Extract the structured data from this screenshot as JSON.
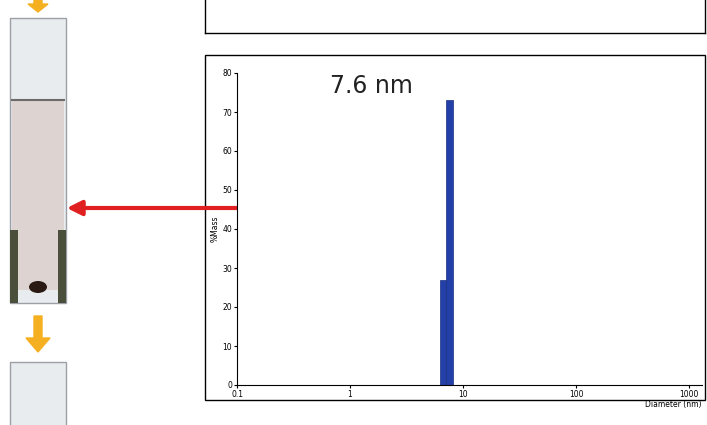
{
  "chart_data": {
    "type": "histogram",
    "bins": [
      6.2,
      7.1,
      8.1
    ],
    "counts": [
      27,
      73
    ],
    "color": "#2340a8",
    "x_label": "Diameter (nm)",
    "y_label": "%Mass",
    "annotation": "7.6 nm",
    "xlim": [
      0.1,
      1300
    ],
    "xticks": [
      0.1,
      1,
      10,
      100,
      1000
    ],
    "ylim": [
      0,
      80
    ],
    "yticks": [
      0,
      10,
      20,
      30,
      40,
      50,
      60,
      70,
      80
    ],
    "log": "x"
  }
}
